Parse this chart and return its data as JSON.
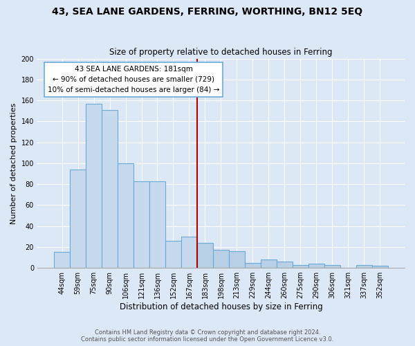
{
  "title": "43, SEA LANE GARDENS, FERRING, WORTHING, BN12 5EQ",
  "subtitle": "Size of property relative to detached houses in Ferring",
  "xlabel": "Distribution of detached houses by size in Ferring",
  "ylabel": "Number of detached properties",
  "categories": [
    "44sqm",
    "59sqm",
    "75sqm",
    "90sqm",
    "106sqm",
    "121sqm",
    "136sqm",
    "152sqm",
    "167sqm",
    "183sqm",
    "198sqm",
    "213sqm",
    "229sqm",
    "244sqm",
    "260sqm",
    "275sqm",
    "290sqm",
    "306sqm",
    "321sqm",
    "337sqm",
    "352sqm"
  ],
  "values": [
    15,
    94,
    157,
    151,
    100,
    83,
    83,
    26,
    30,
    24,
    17,
    16,
    5,
    8,
    6,
    3,
    4,
    3,
    0,
    3,
    2
  ],
  "bar_color_left": "#c6d9ed",
  "bar_color_right": "#b8cfe6",
  "bar_edge_color": "#6aaad4",
  "vline_x_index": 9,
  "vline_color": "#aa0000",
  "annotation_line1": "43 SEA LANE GARDENS: 181sqm",
  "annotation_line2": "← 90% of detached houses are smaller (729)",
  "annotation_line3": "10% of semi-detached houses are larger (84) →",
  "annotation_box_color": "#ffffff",
  "annotation_box_edge": "#6aaad4",
  "ylim": [
    0,
    200
  ],
  "yticks": [
    0,
    20,
    40,
    60,
    80,
    100,
    120,
    140,
    160,
    180,
    200
  ],
  "footer1": "Contains HM Land Registry data © Crown copyright and database right 2024.",
  "footer2": "Contains public sector information licensed under the Open Government Licence v3.0.",
  "bg_color": "#dce8f5",
  "plot_bg_color": "#dce8f5",
  "grid_color": "#ffffff",
  "title_fontsize": 10,
  "subtitle_fontsize": 8.5,
  "xlabel_fontsize": 8.5,
  "ylabel_fontsize": 8,
  "tick_fontsize": 7,
  "footer_fontsize": 6
}
